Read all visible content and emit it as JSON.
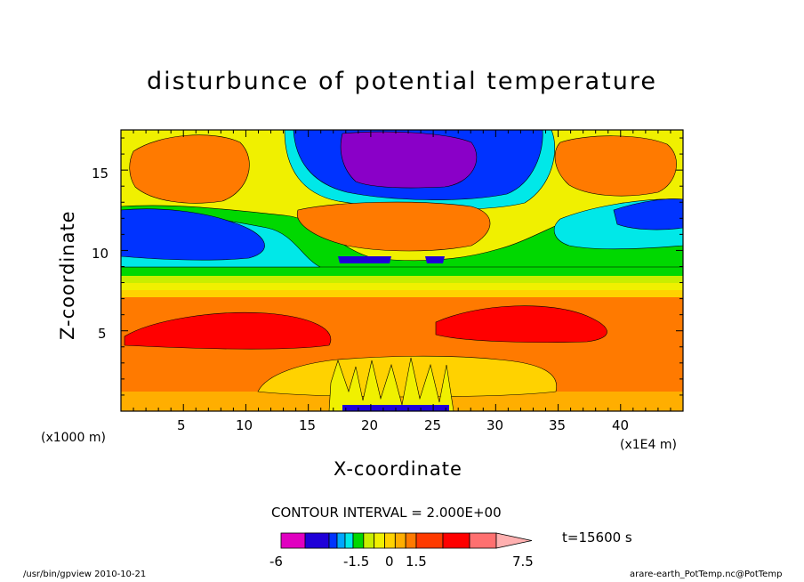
{
  "chart_data": {
    "type": "heatmap",
    "title": "disturbunce of potential temperature",
    "xlabel": "X-coordinate",
    "ylabel": "Z-coordinate",
    "x_unit_left": "(x1000 m)",
    "x_unit_right": "(x1E4 m)",
    "xticks": [
      "5",
      "10",
      "15",
      "20",
      "25",
      "30",
      "35",
      "40"
    ],
    "yticks": [
      "5",
      "10",
      "15"
    ],
    "xlim": [
      0,
      45
    ],
    "ylim": [
      0,
      17.5
    ],
    "contour_interval": "CONTOUR INTERVAL = 2.000E+00",
    "time_label": "t=15600 s",
    "colorbar_labels": [
      "-6",
      "-1.5",
      "0",
      "1.5",
      "7.5"
    ],
    "colorbar_colors": [
      "#e000c0",
      "#8a00c8",
      "#1f00d8",
      "#0033ff",
      "#00a6ff",
      "#00e8e8",
      "#00d800",
      "#c8ee00",
      "#f0f000",
      "#ffd200",
      "#ffae00",
      "#ff7a00",
      "#ff3a00",
      "#ff0000",
      "#ff7070",
      "#ffb0b0"
    ],
    "colorbar_bounds": [
      -7.5,
      -6,
      -4.5,
      -3,
      -2.5,
      -2,
      -1.5,
      -1,
      -0.5,
      0,
      0.5,
      1,
      1.5,
      3,
      4.5,
      6,
      7.5
    ]
  },
  "footer": {
    "left": "/usr/bin/gpview   2010-10-21",
    "right": "arare-earth_PotTemp.nc@PotTemp"
  }
}
